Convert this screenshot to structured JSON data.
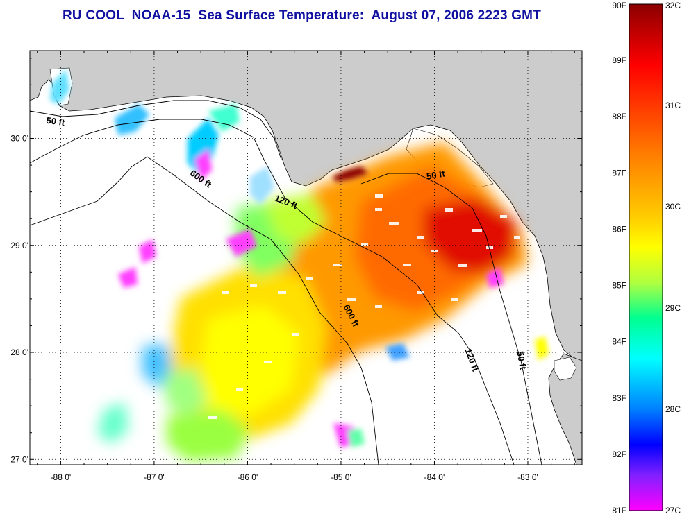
{
  "title": "RU COOL  NOAA-15  Sea Surface Temperature:  August 07, 2006 2223 GMT",
  "map": {
    "lon_range": [
      -88.33,
      -82.42
    ],
    "lat_range": [
      26.95,
      30.82
    ],
    "lon_ticks": [
      {
        "value": -88,
        "label": "-88 0'"
      },
      {
        "value": -87,
        "label": "-87 0'"
      },
      {
        "value": -86,
        "label": "-86 0'"
      },
      {
        "value": -85,
        "label": "-85 0'"
      },
      {
        "value": -84,
        "label": "-84 0'"
      },
      {
        "value": -83,
        "label": "-83 0'"
      }
    ],
    "lat_ticks": [
      {
        "value": 30,
        "label": "30 0'"
      },
      {
        "value": 29,
        "label": "29 0'"
      },
      {
        "value": 28,
        "label": "28 0'"
      },
      {
        "value": 27,
        "label": "27 0'"
      }
    ],
    "grid": "dotted",
    "land_color": "#cccccc",
    "no_data_color": "#ffffff",
    "contour_labels": [
      {
        "text": "50 ft",
        "lon": -88.06,
        "lat": 30.13,
        "rotate": 8
      },
      {
        "text": "600 ft",
        "lon": -86.52,
        "lat": 29.6,
        "rotate": 35
      },
      {
        "text": "120 ft",
        "lon": -85.6,
        "lat": 29.38,
        "rotate": 22
      },
      {
        "text": "50 ft",
        "lon": -83.98,
        "lat": 29.63,
        "rotate": -10
      },
      {
        "text": "600 ft",
        "lon": -84.92,
        "lat": 28.33,
        "rotate": 63
      },
      {
        "text": "120 ft",
        "lon": -83.63,
        "lat": 27.92,
        "rotate": 70
      },
      {
        "text": "50 ft",
        "lon": -83.1,
        "lat": 27.92,
        "rotate": 80
      }
    ]
  },
  "colorbar": {
    "f_labels": [
      {
        "value": 90,
        "label": "90F"
      },
      {
        "value": 89,
        "label": "89F"
      },
      {
        "value": 88,
        "label": "88F"
      },
      {
        "value": 87,
        "label": "87F"
      },
      {
        "value": 86,
        "label": "86F"
      },
      {
        "value": 85,
        "label": "85F"
      },
      {
        "value": 84,
        "label": "84F"
      },
      {
        "value": 83,
        "label": "83F"
      },
      {
        "value": 82,
        "label": "82F"
      },
      {
        "value": 81,
        "label": "81F"
      }
    ],
    "c_labels": [
      {
        "value": 32,
        "label": "32C"
      },
      {
        "value": 31,
        "label": "31C"
      },
      {
        "value": 30,
        "label": "30C"
      },
      {
        "value": 29,
        "label": "29C"
      },
      {
        "value": 28,
        "label": "28C"
      },
      {
        "value": 27,
        "label": "27C"
      }
    ],
    "colors": [
      "#8b0000",
      "#ff0000",
      "#ff7f00",
      "#ffff00",
      "#00ff80",
      "#00ffff",
      "#0000ff",
      "#8000ff",
      "#ff00ff"
    ]
  }
}
